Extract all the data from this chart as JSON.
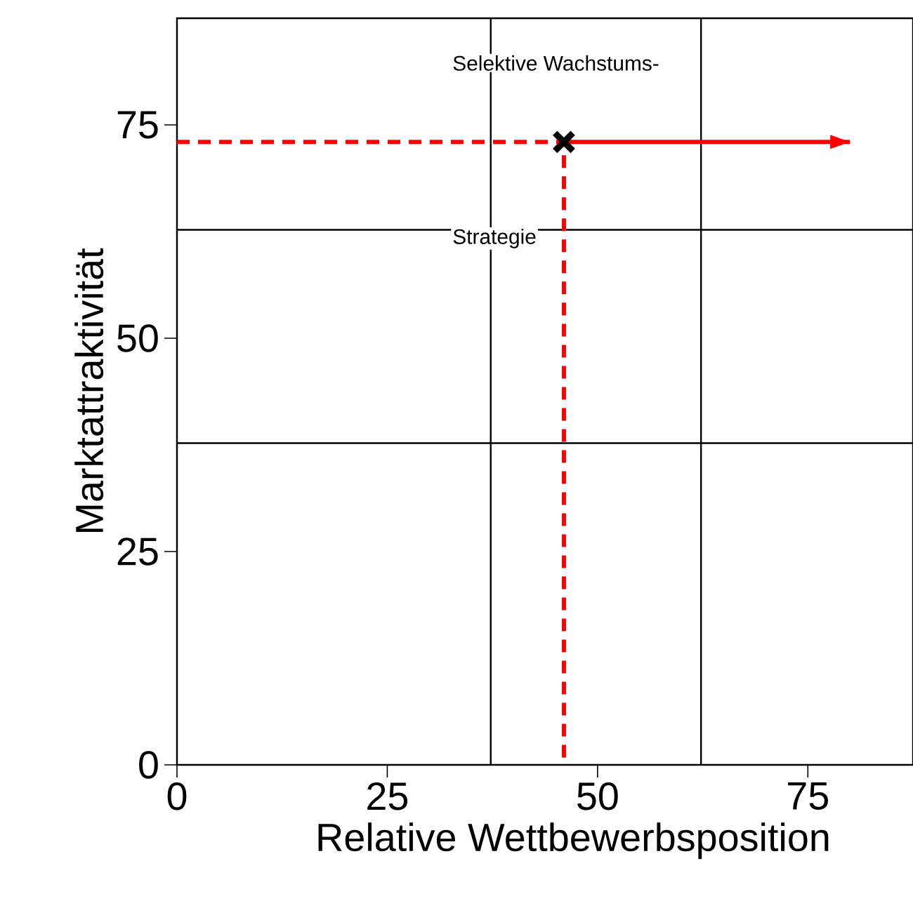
{
  "chart_data": {
    "type": "scatter",
    "xlabel": "Relative Wettbewerbsposition",
    "ylabel": "Marktattraktivität",
    "xlim": [
      0,
      87.5
    ],
    "ylim": [
      0,
      87.5
    ],
    "xticks": [
      0,
      25,
      50,
      75
    ],
    "yticks": [
      0,
      25,
      50,
      75
    ],
    "ref_lines": [
      {
        "axis": "x",
        "value": 37.3,
        "color": "#000000"
      },
      {
        "axis": "x",
        "value": 62.3,
        "color": "#000000"
      },
      {
        "axis": "y",
        "value": 37.7,
        "color": "#000000"
      },
      {
        "axis": "y",
        "value": 62.7,
        "color": "#000000"
      }
    ],
    "series": [
      {
        "type": "line",
        "color": "#ff0000",
        "line_style": "dashed",
        "x": [
          0,
          46,
          46
        ],
        "values": [
          73,
          73,
          0
        ]
      },
      {
        "type": "line",
        "color": "#ff0000",
        "line_style": "solid",
        "x": [
          46,
          80
        ],
        "values": [
          73,
          73
        ]
      },
      {
        "color": "#000000",
        "marker": "cross",
        "x": [
          46
        ],
        "values": [
          73
        ]
      }
    ],
    "annotations": [
      "Selektive Wachstums-",
      "Strategie"
    ]
  }
}
